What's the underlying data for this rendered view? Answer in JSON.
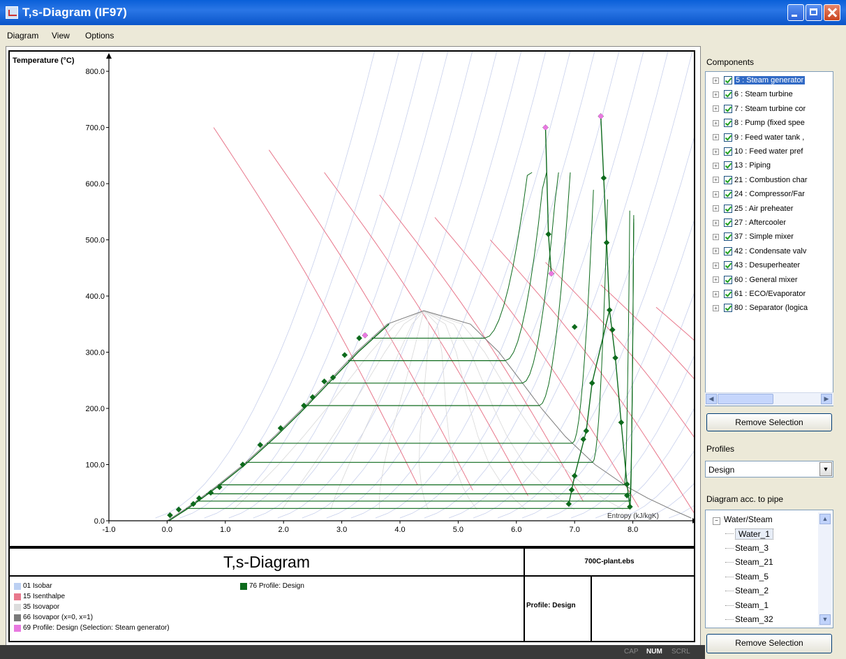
{
  "window": {
    "title": "T,s-Diagram (IF97)"
  },
  "menu": {
    "items": [
      "Diagram",
      "View",
      "Options"
    ]
  },
  "chart_data": {
    "type": "line",
    "xlabel": "Entropy (kJ/kgK)",
    "ylabel": "Temperature (°C)",
    "xlim": [
      -1.0,
      9.0
    ],
    "ylim": [
      0,
      820
    ],
    "xticks": [
      "-1.0",
      "0.0",
      "1.0",
      "2.0",
      "3.0",
      "4.0",
      "5.0",
      "6.0",
      "7.0",
      "8.0"
    ],
    "yticks": [
      "0.0",
      "100.0",
      "200.0",
      "300.0",
      "400.0",
      "500.0",
      "600.0",
      "700.0",
      "800.0"
    ],
    "grid": false,
    "colors": {
      "isobar": "#c8d0ec",
      "isenthalpe": "#e8788c",
      "isovapor": "#d8d8d8",
      "isovapor_boundary": "#7a7a7a",
      "selection": "#e879e0",
      "profile": "#0d6a1c"
    },
    "saturation_dome": {
      "liquid": [
        [
          0,
          0
        ],
        [
          0.3,
          20
        ],
        [
          0.57,
          40
        ],
        [
          0.83,
          60
        ],
        [
          1.31,
          100
        ],
        [
          1.84,
          150
        ],
        [
          2.33,
          200
        ],
        [
          2.79,
          250
        ],
        [
          3.25,
          300
        ],
        [
          3.78,
          350
        ],
        [
          4.41,
          374
        ]
      ],
      "vapor": [
        [
          4.41,
          374
        ],
        [
          5.21,
          350
        ],
        [
          5.7,
          300
        ],
        [
          6.07,
          250
        ],
        [
          6.43,
          200
        ],
        [
          6.84,
          150
        ],
        [
          7.35,
          100
        ],
        [
          7.91,
          60
        ],
        [
          8.26,
          40
        ],
        [
          8.67,
          20
        ],
        [
          9.0,
          5
        ]
      ]
    },
    "profile_points": [
      [
        0.05,
        10
      ],
      [
        0.2,
        20
      ],
      [
        0.45,
        30
      ],
      [
        0.55,
        40
      ],
      [
        0.75,
        50
      ],
      [
        0.9,
        60
      ],
      [
        1.3,
        100
      ],
      [
        1.6,
        135
      ],
      [
        1.95,
        165
      ],
      [
        2.35,
        205
      ],
      [
        2.5,
        220
      ],
      [
        2.7,
        248
      ],
      [
        2.85,
        255
      ],
      [
        3.05,
        295
      ],
      [
        3.3,
        325
      ],
      [
        3.4,
        330
      ],
      [
        6.5,
        700
      ],
      [
        6.55,
        510
      ],
      [
        6.6,
        440
      ],
      [
        7.45,
        720
      ],
      [
        7.5,
        610
      ],
      [
        7.55,
        495
      ],
      [
        7.6,
        375
      ],
      [
        7.65,
        340
      ],
      [
        7.7,
        290
      ],
      [
        7.8,
        175
      ],
      [
        7.0,
        80
      ],
      [
        6.95,
        55
      ],
      [
        6.9,
        30
      ],
      [
        7.9,
        45
      ],
      [
        7.95,
        25
      ],
      [
        7.3,
        245
      ],
      [
        7.2,
        160
      ],
      [
        7.15,
        145
      ],
      [
        7.0,
        345
      ],
      [
        7.9,
        65
      ]
    ],
    "selection_points": [
      [
        6.5,
        700
      ],
      [
        7.45,
        720
      ],
      [
        6.6,
        440
      ],
      [
        3.4,
        330
      ]
    ],
    "isobars_horizontal": [
      325,
      285,
      245,
      205,
      138,
      104,
      64,
      48,
      35,
      22
    ],
    "legend_series": [
      "01 Isobar",
      "15 Isenthalpe",
      "35 Isovapor",
      "66 Isovapor (x=0, x=1)",
      "69 Profile: Design (Selection: Steam generator)",
      "76 Profile: Design"
    ]
  },
  "title_block": {
    "title": "T,s-Diagram",
    "file": "700C-plant.ebs",
    "profile_label": "Profile: Design",
    "legend": [
      {
        "label": "01 Isobar",
        "color": "#bcd0f2"
      },
      {
        "label": "15 Isenthalpe",
        "color": "#e8788c"
      },
      {
        "label": "35 Isovapor",
        "color": "#dcdcdc"
      },
      {
        "label": "66 Isovapor (x=0, x=1)",
        "color": "#7a7a7a"
      },
      {
        "label": "69 Profile: Design (Selection: Steam generator)",
        "color": "#e879e0"
      },
      {
        "label": "76 Profile: Design",
        "color": "#0d6a1c"
      }
    ]
  },
  "sidebar": {
    "components_label": "Components",
    "components": [
      "5 : Steam generator",
      "6 : Steam turbine",
      "7 : Steam turbine cor",
      "8 : Pump (fixed spee",
      "9 : Feed water tank ,",
      "10 : Feed water pref",
      "13 : Piping",
      "21 : Combustion char",
      "24 : Compressor/Far",
      "25 : Air preheater",
      "27 : Aftercooler",
      "37 : Simple mixer",
      "42 : Condensate valv",
      "43 : Desuperheater",
      "60 : General mixer",
      "61 : ECO/Evaporator",
      "80 : Separator (logica"
    ],
    "remove_label": "Remove Selection",
    "profiles_label": "Profiles",
    "profile_value": "Design",
    "pipe_label": "Diagram acc. to pipe",
    "pipe_root": "Water/Steam",
    "pipes": [
      "Water_1",
      "Steam_3",
      "Steam_21",
      "Steam_5",
      "Steam_2",
      "Steam_1",
      "Steam_32"
    ],
    "remove_label_2": "Remove Selection"
  },
  "status": {
    "items": [
      "CAP",
      "NUM",
      "SCRL"
    ]
  }
}
